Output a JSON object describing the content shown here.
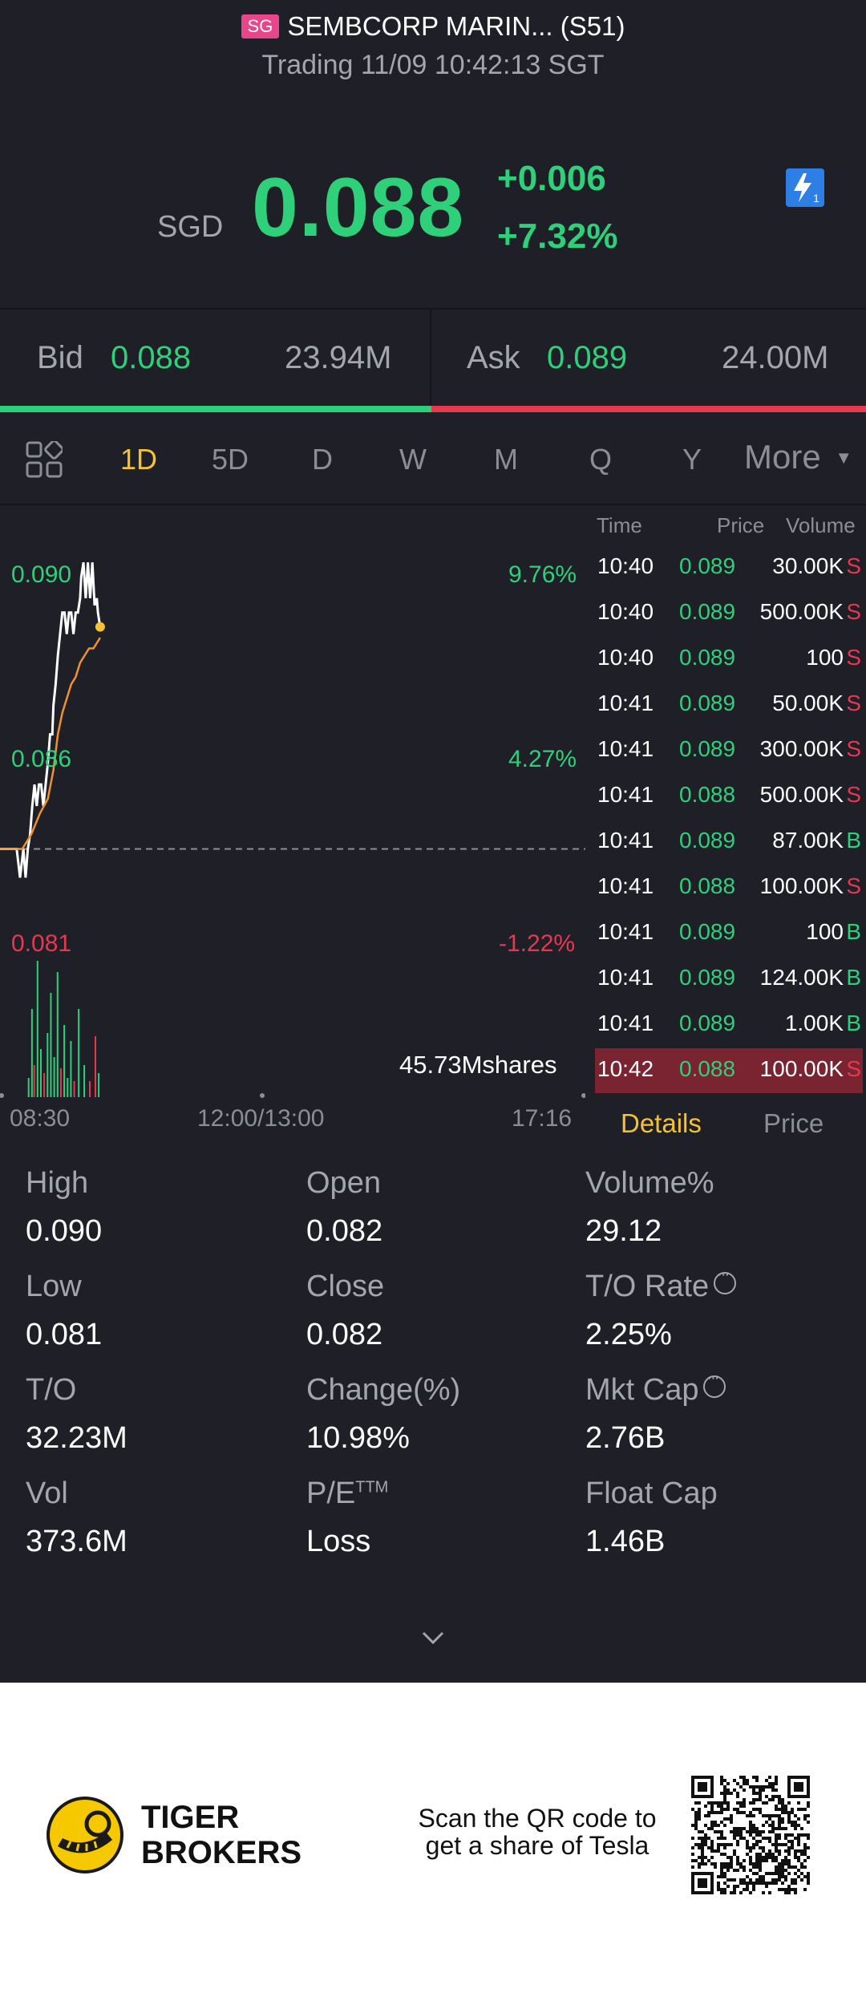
{
  "header": {
    "market_badge": "SG",
    "title": "SEMBCORP MARIN... (S51)",
    "status": "Trading 11/09 10:42:13 SGT",
    "currency": "SGD",
    "price": "0.088",
    "change": "+0.006",
    "change_pct": "+7.32%",
    "accent_green": "#2fd07a",
    "accent_red": "#e63950"
  },
  "bidask": {
    "bid_label": "Bid",
    "bid_price": "0.088",
    "bid_volume": "23.94M",
    "ask_label": "Ask",
    "ask_price": "0.089",
    "ask_volume": "24.00M"
  },
  "tabs": [
    "1D",
    "5D",
    "D",
    "W",
    "M",
    "Q",
    "Y",
    "More"
  ],
  "active_tab": "1D",
  "chart": {
    "price_labels": {
      "high": "0.090",
      "mid": "0.086",
      "low": "0.081"
    },
    "pct_labels": {
      "high": "9.76%",
      "mid": "4.27%",
      "low": "-1.22%"
    },
    "volume_label": "45.73Mshares",
    "time_axis": [
      "08:30",
      "12:00/13:00",
      "17:16"
    ]
  },
  "chart_data": {
    "type": "line",
    "title": "",
    "xlabel": "",
    "ylabel": "",
    "ylim": [
      0.0804,
      0.0907
    ],
    "prev_close": 0.082,
    "series": [
      {
        "points": [
          [
            "08:30",
            0.082
          ],
          [
            "08:35",
            0.082
          ],
          [
            "08:40",
            0.082
          ],
          [
            "08:45",
            0.082
          ],
          [
            "08:48",
            0.0812
          ],
          [
            "08:51",
            0.082
          ],
          [
            "08:53",
            0.0812
          ],
          [
            "08:55",
            0.082
          ],
          [
            "08:57",
            0.0824
          ],
          [
            "08:59",
            0.0832
          ],
          [
            "09:01",
            0.0838
          ],
          [
            "09:03",
            0.0832
          ],
          [
            "09:05",
            0.0838
          ],
          [
            "09:07",
            0.0838
          ],
          [
            "09:09",
            0.0832
          ],
          [
            "09:11",
            0.0838
          ],
          [
            "09:13",
            0.0844
          ],
          [
            "09:15",
            0.0852
          ],
          [
            "09:17",
            0.0852
          ],
          [
            "09:18",
            0.086
          ],
          [
            "09:20",
            0.0866
          ],
          [
            "09:22",
            0.0874
          ],
          [
            "09:24",
            0.088
          ],
          [
            "09:26",
            0.0886
          ],
          [
            "09:28",
            0.0886
          ],
          [
            "09:30",
            0.088
          ],
          [
            "09:32",
            0.0886
          ],
          [
            "09:34",
            0.0886
          ],
          [
            "09:36",
            0.088
          ],
          [
            "09:38",
            0.0886
          ],
          [
            "09:40",
            0.0886
          ],
          [
            "09:42",
            0.089
          ],
          [
            "09:43",
            0.0896
          ],
          [
            "09:45",
            0.09
          ],
          [
            "09:47",
            0.089
          ],
          [
            "09:49",
            0.09
          ],
          [
            "09:51",
            0.089
          ],
          [
            "09:53",
            0.09
          ],
          [
            "09:55",
            0.0888
          ],
          [
            "09:57",
            0.089
          ],
          [
            "09:58",
            0.0886
          ],
          [
            "10:00",
            0.0882
          ]
        ]
      },
      {
        "points": [
          [
            "08:30",
            0.082
          ],
          [
            "08:40",
            0.082
          ],
          [
            "08:50",
            0.082
          ],
          [
            "08:58",
            0.0824
          ],
          [
            "09:06",
            0.083
          ],
          [
            "09:13",
            0.0834
          ],
          [
            "09:18",
            0.0842
          ],
          [
            "09:22",
            0.0852
          ],
          [
            "09:26",
            0.0858
          ],
          [
            "09:30",
            0.0862
          ],
          [
            "09:34",
            0.0866
          ],
          [
            "09:38",
            0.0868
          ],
          [
            "09:42",
            0.0872
          ],
          [
            "09:46",
            0.0874
          ],
          [
            "09:50",
            0.0876
          ],
          [
            "09:54",
            0.0876
          ],
          [
            "09:58",
            0.0878
          ],
          [
            "10:00",
            0.0879
          ]
        ]
      }
    ],
    "volume_bars": [
      {
        "x": "08:55",
        "v": 0.12,
        "side": "B"
      },
      {
        "x": "08:58",
        "v": 0.55,
        "side": "B"
      },
      {
        "x": "09:00",
        "v": 0.2,
        "side": "S"
      },
      {
        "x": "09:03",
        "v": 0.85,
        "side": "B"
      },
      {
        "x": "09:06",
        "v": 0.3,
        "side": "B"
      },
      {
        "x": "09:09",
        "v": 0.15,
        "side": "S"
      },
      {
        "x": "09:12",
        "v": 0.4,
        "side": "B"
      },
      {
        "x": "09:15",
        "v": 0.65,
        "side": "B"
      },
      {
        "x": "09:18",
        "v": 0.25,
        "side": "B"
      },
      {
        "x": "09:21",
        "v": 0.78,
        "side": "B"
      },
      {
        "x": "09:24",
        "v": 0.18,
        "side": "S"
      },
      {
        "x": "09:27",
        "v": 0.45,
        "side": "B"
      },
      {
        "x": "09:30",
        "v": 0.12,
        "side": "B"
      },
      {
        "x": "09:33",
        "v": 0.35,
        "side": "B"
      },
      {
        "x": "09:36",
        "v": 0.1,
        "side": "S"
      },
      {
        "x": "09:40",
        "v": 0.55,
        "side": "B"
      },
      {
        "x": "09:45",
        "v": 0.2,
        "side": "B"
      },
      {
        "x": "09:50",
        "v": 0.1,
        "side": "S"
      },
      {
        "x": "09:55",
        "v": 0.38,
        "side": "S"
      },
      {
        "x": "09:58",
        "v": 0.15,
        "side": "B"
      }
    ]
  },
  "trades": {
    "headers": {
      "time": "Time",
      "price": "Price",
      "volume": "Volume"
    },
    "rows": [
      {
        "time": "10:40",
        "price": "0.089",
        "volume": "30.00K",
        "side": "S"
      },
      {
        "time": "10:40",
        "price": "0.089",
        "volume": "500.00K",
        "side": "S"
      },
      {
        "time": "10:40",
        "price": "0.089",
        "volume": "100",
        "side": "S"
      },
      {
        "time": "10:41",
        "price": "0.089",
        "volume": "50.00K",
        "side": "S"
      },
      {
        "time": "10:41",
        "price": "0.089",
        "volume": "300.00K",
        "side": "S"
      },
      {
        "time": "10:41",
        "price": "0.088",
        "volume": "500.00K",
        "side": "S"
      },
      {
        "time": "10:41",
        "price": "0.089",
        "volume": "87.00K",
        "side": "B"
      },
      {
        "time": "10:41",
        "price": "0.088",
        "volume": "100.00K",
        "side": "S"
      },
      {
        "time": "10:41",
        "price": "0.089",
        "volume": "100",
        "side": "B"
      },
      {
        "time": "10:41",
        "price": "0.089",
        "volume": "124.00K",
        "side": "B"
      },
      {
        "time": "10:41",
        "price": "0.089",
        "volume": "1.00K",
        "side": "B"
      },
      {
        "time": "10:42",
        "price": "0.088",
        "volume": "100.00K",
        "side": "S"
      }
    ],
    "tab_details": "Details",
    "tab_price": "Price"
  },
  "stats": [
    {
      "label": "High",
      "value": "0.090"
    },
    {
      "label": "Open",
      "value": "0.082"
    },
    {
      "label": "Volume%",
      "value": "29.12"
    },
    {
      "label": "Low",
      "value": "0.081"
    },
    {
      "label": "Close",
      "value": "0.082"
    },
    {
      "label": "T/O Rate",
      "value": "2.25%"
    },
    {
      "label": "T/O",
      "value": "32.23M"
    },
    {
      "label": "Change(%)",
      "value": "10.98%"
    },
    {
      "label": "Mkt Cap",
      "value": "2.76B"
    },
    {
      "label": "Vol",
      "value": "373.6M"
    },
    {
      "label": "P/E",
      "value": "Loss"
    },
    {
      "label": "Float Cap",
      "value": "1.46B"
    }
  ],
  "pe_suffix": "TTM",
  "footer": {
    "brand_line1": "TIGER",
    "brand_line2": "BROKERS",
    "qr_line1": "Scan the QR code to",
    "qr_line2": "get a share of Tesla"
  }
}
